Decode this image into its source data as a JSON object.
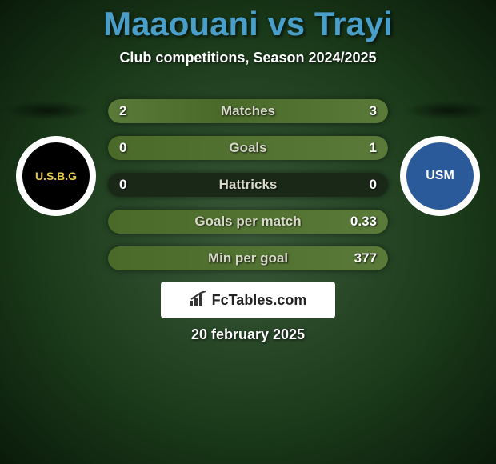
{
  "title": "Maaouani vs Trayi",
  "subtitle": "Club competitions, Season 2024/2025",
  "date": "20 february 2025",
  "logo_text": "FcTables.com",
  "team_left": {
    "badge_bg": "#ffffff",
    "badge_inner_bg": "#000000",
    "badge_text": "U.S.B.G",
    "badge_text_color": "#e8c84a"
  },
  "team_right": {
    "badge_bg": "#ffffff",
    "badge_inner_bg": "#2a5a9a",
    "badge_text": "USM",
    "badge_text_color": "#ffffff"
  },
  "bars": [
    {
      "label": "Matches",
      "left_val": "2",
      "right_val": "3",
      "left_pct": 40,
      "right_pct": 60
    },
    {
      "label": "Goals",
      "left_val": "0",
      "right_val": "1",
      "left_pct": 0,
      "right_pct": 100
    },
    {
      "label": "Hattricks",
      "left_val": "0",
      "right_val": "0",
      "left_pct": 0,
      "right_pct": 0
    },
    {
      "label": "Goals per match",
      "left_val": "",
      "right_val": "0.33",
      "left_pct": 0,
      "right_pct": 100
    },
    {
      "label": "Min per goal",
      "left_val": "",
      "right_val": "377",
      "left_pct": 0,
      "right_pct": 100
    }
  ],
  "colors": {
    "title_color": "#4a9eca",
    "bar_bg": "#1a2818",
    "bar_fill": "#5a7a3a",
    "text_light": "#d8d8c8"
  }
}
